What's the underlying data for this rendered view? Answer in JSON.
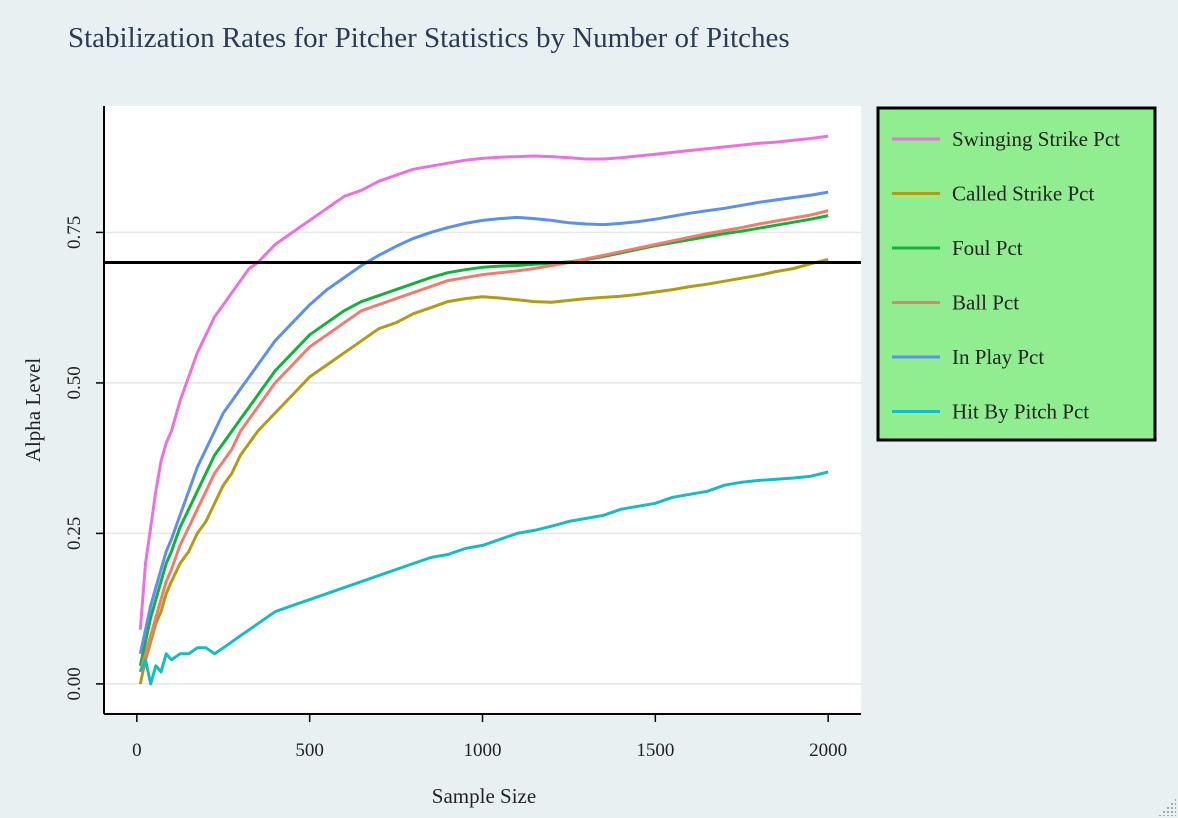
{
  "chart_data": {
    "type": "line",
    "title": "Stabilization Rates for Pitcher Statistics by Number of Pitches",
    "xlabel": "Sample Size",
    "ylabel": "Alpha Level",
    "xlim": [
      -95,
      2095
    ],
    "ylim": [
      -0.05,
      0.96
    ],
    "x_ticks": [
      0,
      500,
      1000,
      1500,
      2000
    ],
    "x_tick_labels": [
      "0",
      "500",
      "1000",
      "1500",
      "2000"
    ],
    "y_ticks": [
      0,
      0.25,
      0.5,
      0.75
    ],
    "y_tick_labels": [
      "0.00",
      "0.25",
      "0.50",
      "0.75"
    ],
    "grid": true,
    "reference_line": {
      "y": 0.7,
      "color": "#000000"
    },
    "legend": {
      "position": "right",
      "background": "#90ee90",
      "border": "#000000"
    },
    "series": [
      {
        "name": "Swinging Strike Pct",
        "color": "#ee6fe0",
        "x": [
          10,
          25,
          40,
          55,
          70,
          85,
          100,
          125,
          150,
          175,
          200,
          225,
          250,
          275,
          300,
          325,
          350,
          400,
          450,
          500,
          550,
          600,
          650,
          700,
          750,
          800,
          850,
          900,
          950,
          1000,
          1050,
          1100,
          1150,
          1200,
          1250,
          1300,
          1350,
          1400,
          1450,
          1500,
          1550,
          1600,
          1650,
          1700,
          1750,
          1800,
          1850,
          1900,
          1950,
          2000
        ],
        "y": [
          0.09,
          0.2,
          0.26,
          0.32,
          0.37,
          0.4,
          0.42,
          0.47,
          0.51,
          0.55,
          0.58,
          0.61,
          0.63,
          0.65,
          0.67,
          0.69,
          0.7,
          0.73,
          0.75,
          0.77,
          0.79,
          0.81,
          0.82,
          0.835,
          0.845,
          0.855,
          0.86,
          0.865,
          0.87,
          0.873,
          0.875,
          0.876,
          0.877,
          0.876,
          0.874,
          0.872,
          0.872,
          0.874,
          0.877,
          0.88,
          0.883,
          0.886,
          0.889,
          0.892,
          0.895,
          0.898,
          0.9,
          0.903,
          0.906,
          0.91
        ]
      },
      {
        "name": "Called Strike Pct",
        "color": "#b59b12",
        "x": [
          10,
          25,
          40,
          55,
          70,
          85,
          100,
          125,
          150,
          175,
          200,
          225,
          250,
          275,
          300,
          325,
          350,
          400,
          450,
          500,
          550,
          600,
          650,
          700,
          750,
          800,
          850,
          900,
          950,
          1000,
          1050,
          1100,
          1150,
          1200,
          1250,
          1300,
          1350,
          1400,
          1450,
          1500,
          1550,
          1600,
          1650,
          1700,
          1750,
          1800,
          1850,
          1900,
          1950,
          2000
        ],
        "y": [
          0.0,
          0.04,
          0.07,
          0.1,
          0.12,
          0.15,
          0.17,
          0.2,
          0.22,
          0.25,
          0.27,
          0.3,
          0.33,
          0.35,
          0.38,
          0.4,
          0.42,
          0.45,
          0.48,
          0.51,
          0.53,
          0.55,
          0.57,
          0.59,
          0.6,
          0.615,
          0.625,
          0.635,
          0.64,
          0.643,
          0.641,
          0.638,
          0.635,
          0.634,
          0.637,
          0.64,
          0.642,
          0.644,
          0.647,
          0.651,
          0.655,
          0.66,
          0.664,
          0.669,
          0.674,
          0.679,
          0.685,
          0.69,
          0.698,
          0.705
        ]
      },
      {
        "name": "Foul Pct",
        "color": "#11b33a",
        "x": [
          10,
          25,
          40,
          55,
          70,
          85,
          100,
          125,
          150,
          175,
          200,
          225,
          250,
          275,
          300,
          325,
          350,
          400,
          450,
          500,
          550,
          600,
          650,
          700,
          750,
          800,
          850,
          900,
          950,
          1000,
          1050,
          1100,
          1150,
          1200,
          1250,
          1300,
          1350,
          1400,
          1450,
          1500,
          1550,
          1600,
          1650,
          1700,
          1750,
          1800,
          1850,
          1900,
          1950,
          2000
        ],
        "y": [
          0.03,
          0.07,
          0.11,
          0.14,
          0.17,
          0.2,
          0.22,
          0.26,
          0.29,
          0.32,
          0.35,
          0.38,
          0.4,
          0.42,
          0.44,
          0.46,
          0.48,
          0.52,
          0.55,
          0.58,
          0.6,
          0.62,
          0.635,
          0.645,
          0.655,
          0.665,
          0.675,
          0.683,
          0.688,
          0.692,
          0.694,
          0.695,
          0.697,
          0.699,
          0.701,
          0.705,
          0.71,
          0.716,
          0.722,
          0.728,
          0.733,
          0.738,
          0.743,
          0.748,
          0.752,
          0.757,
          0.762,
          0.767,
          0.772,
          0.778
        ]
      },
      {
        "name": "Ball Pct",
        "color": "#f07c70",
        "x": [
          10,
          25,
          40,
          55,
          70,
          85,
          100,
          125,
          150,
          175,
          200,
          225,
          250,
          275,
          300,
          325,
          350,
          400,
          450,
          500,
          550,
          600,
          650,
          700,
          750,
          800,
          850,
          900,
          950,
          1000,
          1050,
          1100,
          1150,
          1200,
          1250,
          1300,
          1350,
          1400,
          1450,
          1500,
          1550,
          1600,
          1650,
          1700,
          1750,
          1800,
          1850,
          1900,
          1950,
          2000
        ],
        "y": [
          0.02,
          0.05,
          0.08,
          0.11,
          0.14,
          0.17,
          0.19,
          0.23,
          0.26,
          0.29,
          0.32,
          0.35,
          0.37,
          0.39,
          0.42,
          0.44,
          0.46,
          0.5,
          0.53,
          0.56,
          0.58,
          0.6,
          0.62,
          0.63,
          0.64,
          0.65,
          0.66,
          0.67,
          0.675,
          0.68,
          0.683,
          0.686,
          0.69,
          0.695,
          0.7,
          0.706,
          0.712,
          0.718,
          0.724,
          0.73,
          0.736,
          0.742,
          0.748,
          0.753,
          0.758,
          0.764,
          0.769,
          0.774,
          0.779,
          0.786
        ]
      },
      {
        "name": "In Play Pct",
        "color": "#5b8ff2",
        "x": [
          10,
          25,
          40,
          55,
          70,
          85,
          100,
          125,
          150,
          175,
          200,
          225,
          250,
          275,
          300,
          325,
          350,
          400,
          450,
          500,
          550,
          600,
          650,
          700,
          750,
          800,
          850,
          900,
          950,
          1000,
          1050,
          1100,
          1150,
          1200,
          1250,
          1300,
          1350,
          1400,
          1450,
          1500,
          1550,
          1600,
          1650,
          1700,
          1750,
          1800,
          1850,
          1900,
          1950,
          2000
        ],
        "y": [
          0.05,
          0.09,
          0.13,
          0.16,
          0.19,
          0.22,
          0.24,
          0.28,
          0.32,
          0.36,
          0.39,
          0.42,
          0.45,
          0.47,
          0.49,
          0.51,
          0.53,
          0.57,
          0.6,
          0.63,
          0.655,
          0.675,
          0.695,
          0.712,
          0.727,
          0.74,
          0.75,
          0.758,
          0.765,
          0.77,
          0.773,
          0.775,
          0.773,
          0.77,
          0.766,
          0.764,
          0.763,
          0.765,
          0.768,
          0.772,
          0.777,
          0.782,
          0.786,
          0.79,
          0.795,
          0.8,
          0.804,
          0.808,
          0.812,
          0.817
        ]
      },
      {
        "name": "Hit By Pitch Pct",
        "color": "#14bcc4",
        "x": [
          10,
          25,
          40,
          55,
          70,
          85,
          100,
          125,
          150,
          175,
          200,
          225,
          250,
          275,
          300,
          350,
          400,
          450,
          500,
          550,
          600,
          650,
          700,
          750,
          800,
          850,
          900,
          950,
          1000,
          1050,
          1100,
          1150,
          1200,
          1250,
          1300,
          1350,
          1400,
          1450,
          1500,
          1550,
          1600,
          1650,
          1700,
          1750,
          1800,
          1850,
          1900,
          1950,
          2000
        ],
        "y": [
          0.02,
          0.04,
          0.0,
          0.03,
          0.02,
          0.05,
          0.04,
          0.05,
          0.05,
          0.06,
          0.06,
          0.05,
          0.06,
          0.07,
          0.08,
          0.1,
          0.12,
          0.13,
          0.14,
          0.15,
          0.16,
          0.17,
          0.18,
          0.19,
          0.2,
          0.21,
          0.215,
          0.225,
          0.23,
          0.24,
          0.25,
          0.255,
          0.262,
          0.27,
          0.275,
          0.28,
          0.29,
          0.295,
          0.3,
          0.31,
          0.315,
          0.32,
          0.33,
          0.335,
          0.338,
          0.34,
          0.342,
          0.345,
          0.352
        ]
      }
    ]
  }
}
